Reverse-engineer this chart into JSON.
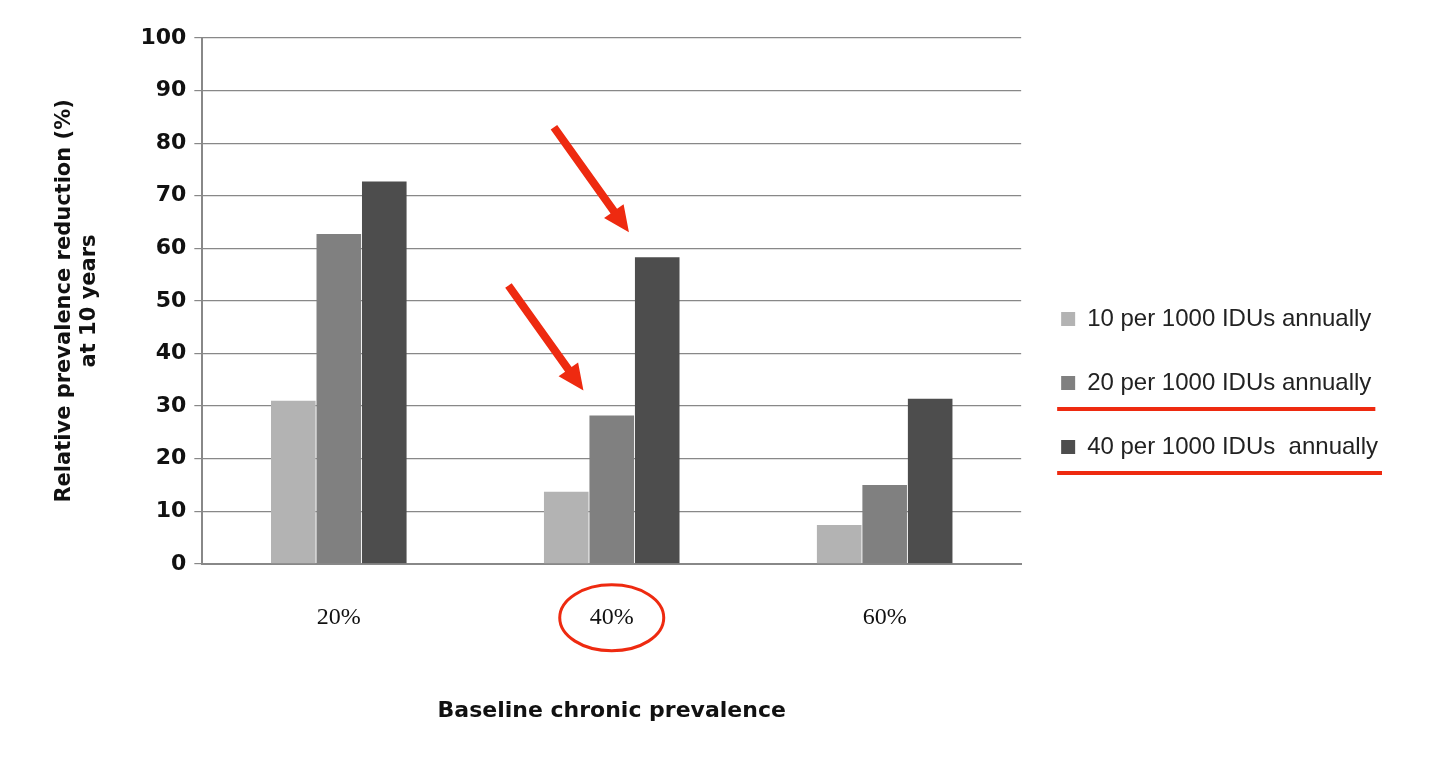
{
  "chart_data": {
    "type": "bar",
    "xlabel": "Baseline chronic prevalence",
    "ylabel": "Relative prevalence reduction (%) at 10 years",
    "categories": [
      "20%",
      "40%",
      "60%"
    ],
    "series": [
      {
        "name": "10 per 1000 IDUs annually",
        "color": "#b3b3b3",
        "values": [
          31,
          13.7,
          7.4
        ]
      },
      {
        "name": "20 per 1000 IDUs annually",
        "color": "#808080",
        "values": [
          62.7,
          28.2,
          15
        ]
      },
      {
        "name": "40 per 1000 IDUs  annually",
        "color": "#4d4d4d",
        "values": [
          72.7,
          58.3,
          31.4
        ]
      }
    ],
    "ylim": [
      0,
      100
    ],
    "yticks": [
      0,
      10,
      20,
      30,
      40,
      50,
      60,
      70,
      80,
      90,
      100
    ],
    "grid": "y",
    "legend": "right"
  }
}
